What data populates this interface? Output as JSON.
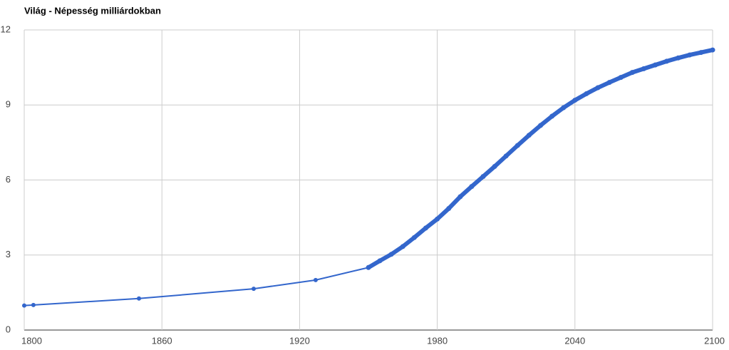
{
  "chart_data": {
    "type": "line",
    "title": "Világ - Népesség milliárdokban",
    "x": [
      1800,
      1804,
      1850,
      1900,
      1927,
      1950,
      1955,
      1960,
      1965,
      1970,
      1975,
      1980,
      1985,
      1990,
      1995,
      2000,
      2005,
      2010,
      2015,
      2020,
      2025,
      2030,
      2035,
      2040,
      2045,
      2050,
      2055,
      2060,
      2065,
      2070,
      2075,
      2080,
      2085,
      2090,
      2095,
      2100
    ],
    "series": [
      {
        "name": "Népesség",
        "color": "#3366cc",
        "values": [
          0.98,
          1.0,
          1.26,
          1.65,
          2.0,
          2.5,
          2.77,
          3.03,
          3.34,
          3.7,
          4.08,
          4.44,
          4.86,
          5.33,
          5.74,
          6.14,
          6.54,
          6.96,
          7.38,
          7.79,
          8.18,
          8.55,
          8.89,
          9.19,
          9.45,
          9.69,
          9.9,
          10.1,
          10.3,
          10.45,
          10.6,
          10.75,
          10.88,
          11.0,
          11.1,
          11.2
        ]
      }
    ],
    "xlim": [
      1800,
      2100
    ],
    "xticks": [
      1800,
      1860,
      1920,
      1980,
      2040,
      2100
    ],
    "ylim": [
      0,
      12
    ],
    "yticks": [
      0,
      3,
      6,
      9,
      12
    ],
    "grid": true
  }
}
